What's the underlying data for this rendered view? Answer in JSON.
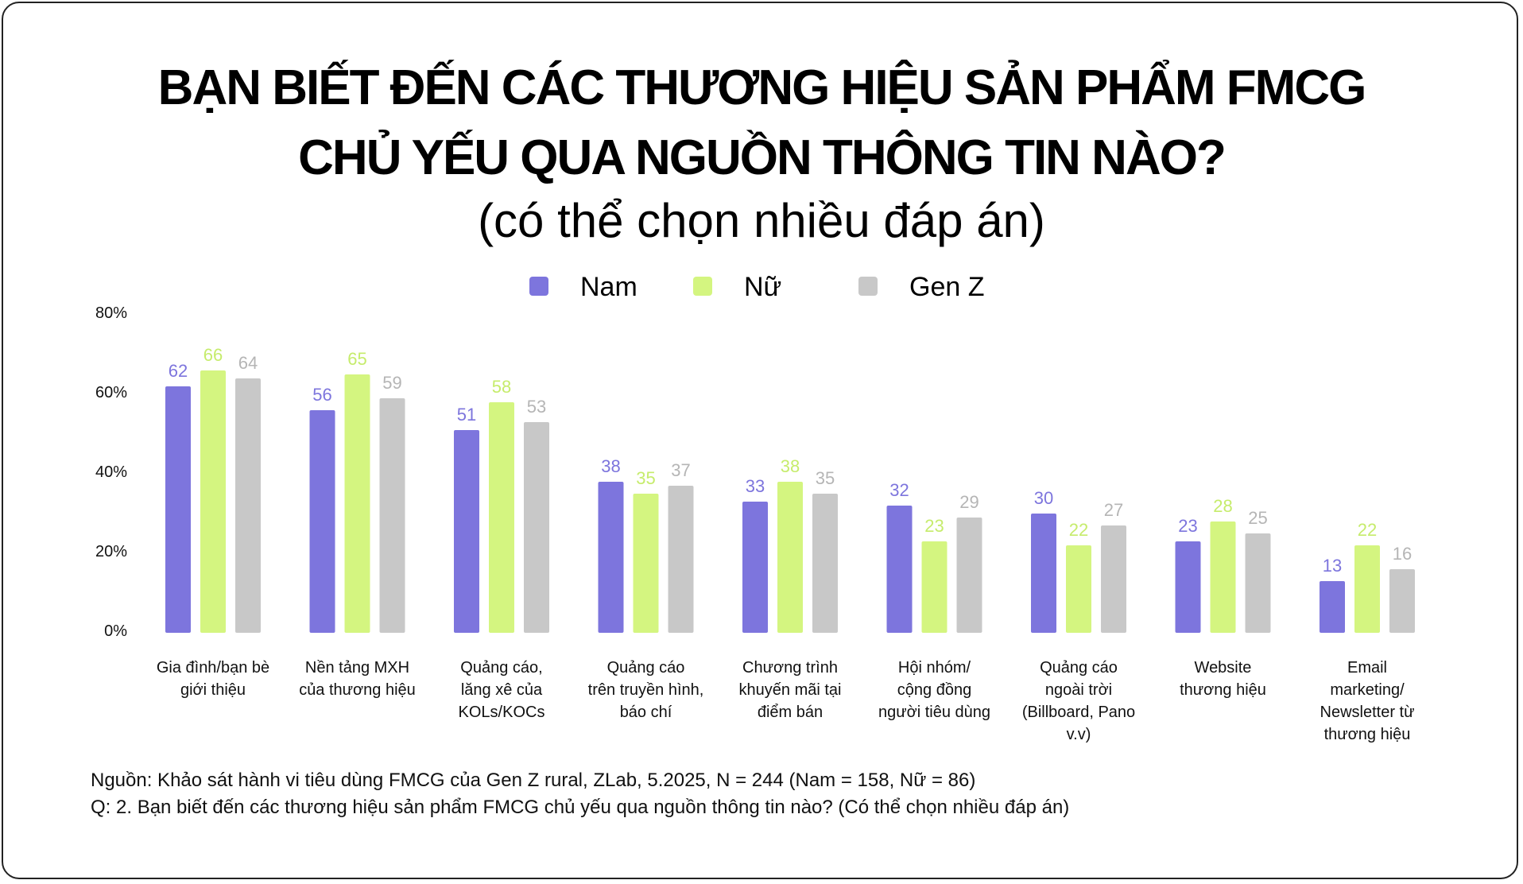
{
  "title_line1": "BẠN BIẾT ĐẾN CÁC THƯƠNG HIỆU SẢN PHẨM FMCG",
  "title_line2": "CHỦ YẾU QUA NGUỒN THÔNG TIN NÀO?",
  "subtitle": "(có thể chọn nhiều đáp án)",
  "source_line": "Nguồn: Khảo sát hành vi tiêu dùng FMCG của Gen Z rural, ZLab, 5.2025, N = 244 (Nam = 158, Nữ = 86)",
  "question_line": "Q: 2. Bạn biết đến các thương hiệu sản phẩm FMCG chủ yếu qua nguồn thông tin nào? (Có thể chọn nhiều đáp án)",
  "colors": {
    "nam": "#7d75dd",
    "nu": "#d4f580",
    "genz": "#c8c8c8",
    "nam_label": "#7d75dd",
    "nu_label": "#c6ec6c",
    "genz_label": "#b5b5b5"
  },
  "chart_data": {
    "type": "bar",
    "title": "BẠN BIẾT ĐẾN CÁC THƯƠNG HIỆU SẢN PHẨM FMCG CHỦ YẾU QUA NGUỒN THÔNG TIN NÀO?",
    "subtitle": "(có thể chọn nhiều đáp án)",
    "xlabel": "",
    "ylabel": "",
    "ylim": [
      0,
      80
    ],
    "yticks": [
      "0%",
      "20%",
      "40%",
      "60%",
      "80%"
    ],
    "ytick_values": [
      0,
      20,
      40,
      60,
      80
    ],
    "grid": false,
    "legend_position": "top-center",
    "categories": [
      [
        "Gia đình/bạn bè",
        "giới thiệu"
      ],
      [
        "Nền tảng MXH",
        "của thương hiệu"
      ],
      [
        "Quảng cáo,",
        "lăng xê của",
        "KOLs/KOCs"
      ],
      [
        "Quảng cáo",
        "trên truyền hình,",
        "báo chí"
      ],
      [
        "Chương trình",
        "khuyến mãi tại",
        "điểm bán"
      ],
      [
        "Hội nhóm/",
        "cộng đồng",
        "người tiêu dùng"
      ],
      [
        "Quảng cáo",
        "ngoài trời",
        "(Billboard, Pano",
        "v.v)"
      ],
      [
        "Website",
        "thương hiệu"
      ],
      [
        "Email",
        "marketing/",
        "Newsletter từ",
        "thương hiệu"
      ]
    ],
    "series": [
      {
        "name": "Nam",
        "color_key": "nam",
        "values": [
          62,
          56,
          51,
          38,
          33,
          32,
          30,
          23,
          13
        ]
      },
      {
        "name": "Nữ",
        "color_key": "nu",
        "values": [
          66,
          65,
          58,
          35,
          38,
          23,
          22,
          28,
          22
        ]
      },
      {
        "name": "Gen Z",
        "color_key": "genz",
        "values": [
          64,
          59,
          53,
          37,
          35,
          29,
          27,
          25,
          16
        ]
      }
    ]
  }
}
